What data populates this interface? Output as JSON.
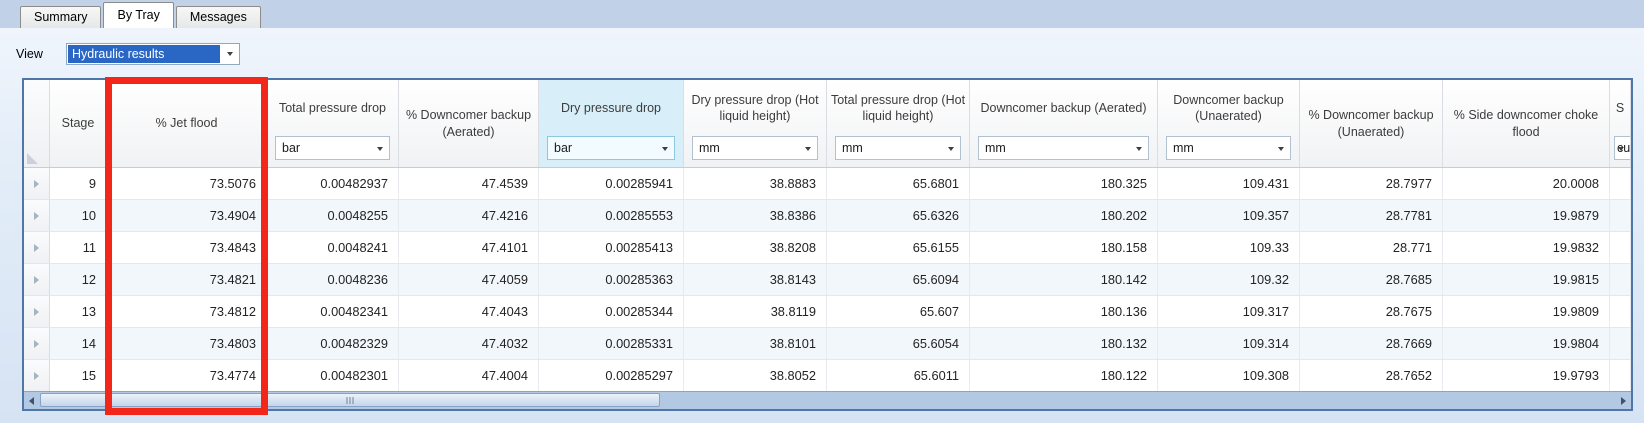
{
  "tabs": {
    "items": [
      {
        "label": "Summary",
        "active": false
      },
      {
        "label": "By Tray",
        "active": true
      },
      {
        "label": "Messages",
        "active": false
      }
    ]
  },
  "view_row": {
    "label": "View",
    "value": "Hydraulic results"
  },
  "table": {
    "columns": [
      {
        "id": "stage",
        "label": "Stage",
        "unit": null,
        "highlight": false
      },
      {
        "id": "jet-flood",
        "label": "% Jet flood",
        "unit": null,
        "highlight": false
      },
      {
        "id": "total-pressure-drop",
        "label": "Total pressure drop",
        "unit": "bar",
        "highlight": false
      },
      {
        "id": "pct-downcomer-backup-aerated",
        "label": "% Downcomer backup (Aerated)",
        "unit": null,
        "highlight": false
      },
      {
        "id": "dry-pressure-drop",
        "label": "Dry pressure drop",
        "unit": "bar",
        "highlight": true
      },
      {
        "id": "dry-pressure-drop-hot-liquid-height",
        "label": "Dry pressure drop (Hot liquid height)",
        "unit": "mm",
        "highlight": false
      },
      {
        "id": "total-pressure-drop-hot-liquid-height",
        "label": "Total pressure drop (Hot liquid height)",
        "unit": "mm",
        "highlight": false
      },
      {
        "id": "downcomer-backup-aerated",
        "label": "Downcomer backup (Aerated)",
        "unit": "mm",
        "highlight": false
      },
      {
        "id": "downcomer-backup-unaerated",
        "label": "Downcomer backup (Unaerated)",
        "unit": "mm",
        "highlight": false
      },
      {
        "id": "pct-downcomer-backup-unaerated",
        "label": "% Downcomer backup (Unaerated)",
        "unit": null,
        "highlight": false
      },
      {
        "id": "pct-side-downcomer-choke-flood",
        "label": "% Side downcomer choke flood",
        "unit": null,
        "highlight": false
      },
      {
        "id": "clipped-column",
        "label": "S",
        "unit": "cu",
        "highlight": false
      }
    ],
    "rows": [
      {
        "cells": [
          "9",
          "73.5076",
          "0.00482937",
          "47.4539",
          "0.00285941",
          "38.8883",
          "65.6801",
          "180.325",
          "109.431",
          "28.7977",
          "20.0008",
          ""
        ]
      },
      {
        "cells": [
          "10",
          "73.4904",
          "0.0048255",
          "47.4216",
          "0.00285553",
          "38.8386",
          "65.6326",
          "180.202",
          "109.357",
          "28.7781",
          "19.9879",
          ""
        ]
      },
      {
        "cells": [
          "11",
          "73.4843",
          "0.0048241",
          "47.4101",
          "0.00285413",
          "38.8208",
          "65.6155",
          "180.158",
          "109.33",
          "28.771",
          "19.9832",
          ""
        ]
      },
      {
        "cells": [
          "12",
          "73.4821",
          "0.0048236",
          "47.4059",
          "0.00285363",
          "38.8143",
          "65.6094",
          "180.142",
          "109.32",
          "28.7685",
          "19.9815",
          ""
        ]
      },
      {
        "cells": [
          "13",
          "73.4812",
          "0.00482341",
          "47.4043",
          "0.00285344",
          "38.8119",
          "65.607",
          "180.136",
          "109.317",
          "28.7675",
          "19.9809",
          ""
        ]
      },
      {
        "cells": [
          "14",
          "73.4803",
          "0.00482329",
          "47.4032",
          "0.00285331",
          "38.8101",
          "65.6054",
          "180.132",
          "109.314",
          "28.7669",
          "19.9804",
          ""
        ]
      },
      {
        "cells": [
          "15",
          "73.4774",
          "0.00482301",
          "47.4004",
          "0.00285297",
          "38.8052",
          "65.6011",
          "180.122",
          "109.308",
          "28.7652",
          "19.9793",
          ""
        ]
      }
    ]
  },
  "annotation": {
    "type": "highlight-rectangle",
    "target_column": "% Jet flood",
    "color": "#f3261a"
  }
}
